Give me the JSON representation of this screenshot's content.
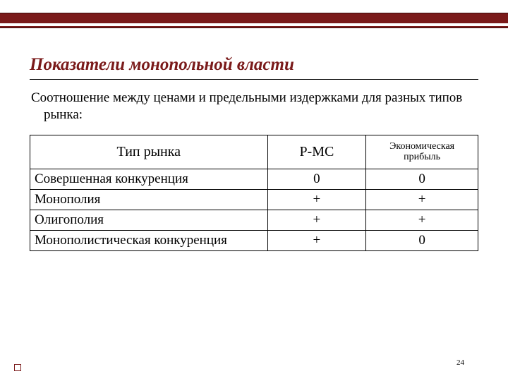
{
  "slide": {
    "title": "Показатели монопольной власти",
    "subtitle": "Соотношение между ценами и предельными издержками для разных типов рынка:",
    "page_number": "24"
  },
  "band": {
    "color": "#7a1a1a"
  },
  "table": {
    "type": "table",
    "columns": [
      {
        "label": "Тип рынка",
        "width_pct": 53,
        "align": "left",
        "fontsize": 20
      },
      {
        "label": "P-MC",
        "width_pct": 22,
        "align": "center",
        "fontsize": 20
      },
      {
        "label": "Экономическая прибыль",
        "width_pct": 25,
        "align": "center",
        "fontsize": 14
      }
    ],
    "rows": [
      {
        "label": "Совершенная конкуренция",
        "pmc": "0",
        "profit": "0"
      },
      {
        "label": "Монополия",
        "pmc": "+",
        "profit": "+"
      },
      {
        "label": "Олигополия",
        "pmc": "+",
        "profit": "+"
      },
      {
        "label": "Монополистическая конкуренция",
        "pmc": "+",
        "profit": "0"
      }
    ],
    "border_color": "#000000",
    "background_color": "#ffffff",
    "cell_fontsize": 19
  }
}
